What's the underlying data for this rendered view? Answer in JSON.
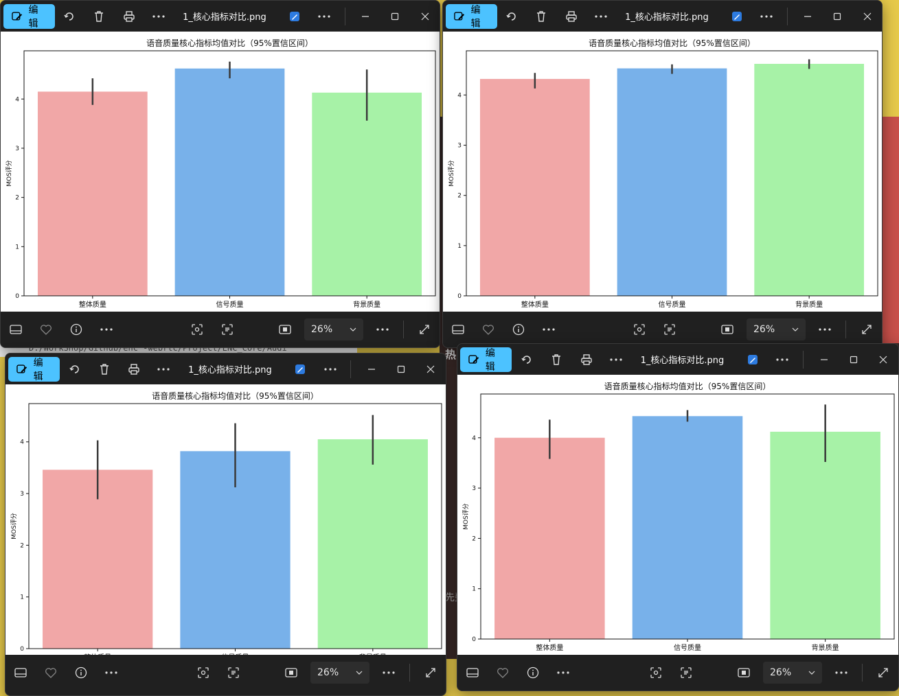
{
  "background": {
    "terminal_text": "D:/WorkShop/Github/enc -webrtc/Project/ENC_Core/Audi",
    "snippet_hot": "热",
    "snippet_cost": "先费"
  },
  "windows": [
    {
      "edit_label": "编辑",
      "filename": "1_核心指标对比.png",
      "zoom": "26%",
      "chart_data": {
        "type": "bar",
        "title": "语音质量核心指标均值对比（95%置信区间）",
        "ylabel": "MOS评分",
        "categories": [
          "整体质量",
          "信号质量",
          "背景质量"
        ],
        "values": [
          4.15,
          4.62,
          4.13
        ],
        "ci_low": [
          3.88,
          4.42,
          3.56
        ],
        "ci_high": [
          4.42,
          4.76,
          4.6
        ],
        "colors": [
          "#f1a7a7",
          "#78b1ea",
          "#a7f2a7"
        ],
        "ylim": [
          0,
          4.98
        ],
        "yticks": [
          0,
          1,
          2,
          3,
          4
        ]
      }
    },
    {
      "edit_label": "编辑",
      "filename": "1_核心指标对比.png",
      "zoom": "26%",
      "chart_data": {
        "type": "bar",
        "title": "语音质量核心指标均值对比（95%置信区间）",
        "ylabel": "MOS评分",
        "categories": [
          "整体质量",
          "信号质量",
          "背景质量"
        ],
        "values": [
          4.32,
          4.53,
          4.62
        ],
        "ci_low": [
          4.13,
          4.42,
          4.52
        ],
        "ci_high": [
          4.44,
          4.61,
          4.71
        ],
        "colors": [
          "#f1a7a7",
          "#78b1ea",
          "#a7f2a7"
        ],
        "ylim": [
          0,
          4.88
        ],
        "yticks": [
          0,
          1,
          2,
          3,
          4
        ]
      }
    },
    {
      "edit_label": "编辑",
      "filename": "1_核心指标对比.png",
      "zoom": "26%",
      "chart_data": {
        "type": "bar",
        "title": "语音质量核心指标均值对比（95%置信区间）",
        "ylabel": "MOS评分",
        "categories": [
          "整体质量",
          "信号质量",
          "背景质量"
        ],
        "values": [
          3.46,
          3.82,
          4.05
        ],
        "ci_low": [
          2.89,
          3.12,
          3.56
        ],
        "ci_high": [
          4.03,
          4.36,
          4.52
        ],
        "colors": [
          "#f1a7a7",
          "#78b1ea",
          "#a7f2a7"
        ],
        "ylim": [
          0,
          4.74
        ],
        "yticks": [
          0,
          1,
          2,
          3,
          4
        ]
      }
    },
    {
      "edit_label": "编辑",
      "filename": "1_核心指标对比.png",
      "zoom": "26%",
      "chart_data": {
        "type": "bar",
        "title": "语音质量核心指标均值对比（95%置信区间）",
        "ylabel": "MOS评分",
        "categories": [
          "整体质量",
          "信号质量",
          "背景质量"
        ],
        "values": [
          4.0,
          4.43,
          4.12
        ],
        "ci_low": [
          3.58,
          4.32,
          3.52
        ],
        "ci_high": [
          4.36,
          4.55,
          4.66
        ],
        "colors": [
          "#f1a7a7",
          "#78b1ea",
          "#a7f2a7"
        ],
        "ylim": [
          0,
          4.87
        ],
        "yticks": [
          0,
          1,
          2,
          3,
          4
        ]
      }
    }
  ]
}
